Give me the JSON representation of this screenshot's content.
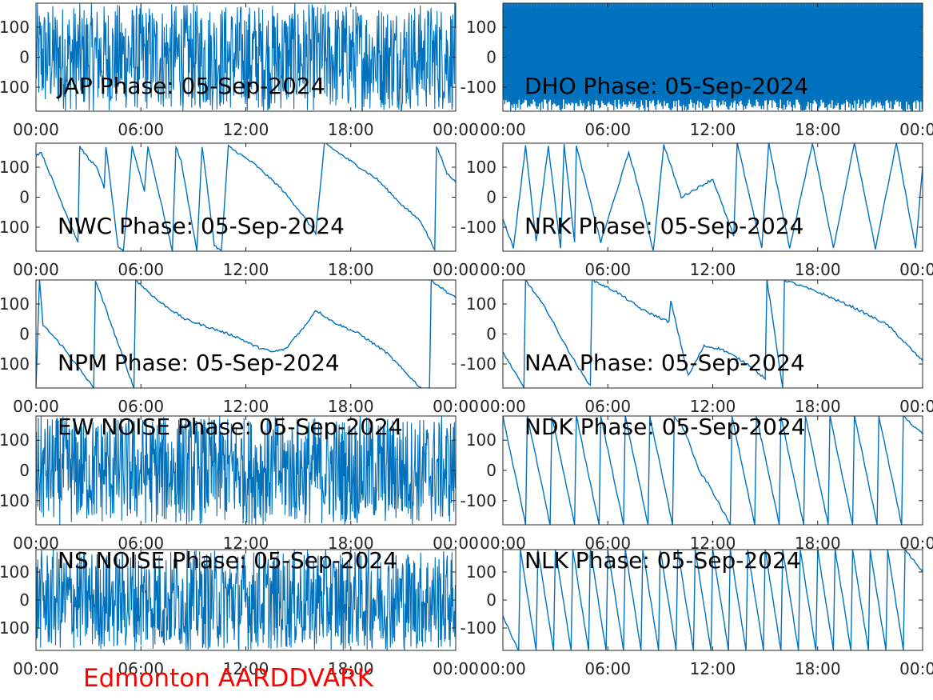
{
  "figure": {
    "station_label": "Edmonton AARDDVARK",
    "station_label_color": "#ff0000",
    "line_color": "#0072bd",
    "axis_color": "#262626",
    "background": "#ffffff"
  },
  "chart_data": [
    {
      "type": "line",
      "title": "JAP Phase: 05-Sep-2024",
      "xticks": [
        "00:00",
        "06:00",
        "12:00",
        "18:00",
        "00:00"
      ],
      "yticks": [
        "100",
        "0",
        "-100"
      ],
      "xlim": [
        0,
        24
      ],
      "ylim": [
        -180,
        180
      ],
      "pattern": "noise-dense",
      "x": [
        0,
        2,
        4,
        6,
        8,
        10,
        12,
        14,
        16,
        18,
        20,
        22,
        24
      ],
      "y": [
        30,
        -120,
        150,
        -60,
        90,
        -170,
        40,
        120,
        -100,
        170,
        -30,
        80,
        0
      ]
    },
    {
      "type": "line",
      "title": "DHO Phase: 05-Sep-2024",
      "xticks": [
        "00:00",
        "06:00",
        "12:00",
        "18:00",
        "00:00"
      ],
      "yticks": [
        "100",
        "0",
        "-100"
      ],
      "xlim": [
        0,
        24
      ],
      "ylim": [
        -180,
        180
      ],
      "pattern": "rapid-wrap",
      "x": [
        0,
        2,
        4,
        6,
        8,
        10,
        12,
        14,
        16,
        18,
        20,
        22,
        24
      ],
      "y": [
        20,
        -150,
        170,
        -80,
        100,
        -40,
        60,
        -120,
        150,
        -20,
        90,
        -170,
        0
      ]
    },
    {
      "type": "line",
      "title": "NWC Phase: 05-Sep-2024",
      "xticks": [
        "00:00",
        "06:00",
        "12:00",
        "18:00",
        "00:00"
      ],
      "yticks": [
        "100",
        "0",
        "-100"
      ],
      "xlim": [
        0,
        24
      ],
      "ylim": [
        -180,
        180
      ],
      "pattern": "wrapped",
      "x": [
        0,
        0.3,
        1.2,
        2.4,
        2.5,
        3.1,
        3.4,
        3.9,
        4.0,
        4.7,
        5.0,
        5.5,
        6.2,
        6.4,
        7.8,
        8.0,
        8.3,
        9.2,
        9.5,
        10.2,
        10.6,
        11.0,
        12.5,
        14.0,
        15.0,
        16.0,
        16.5,
        18.0,
        19.5,
        21.0,
        22.0,
        22.8,
        22.9,
        23.5,
        24.0
      ],
      "y": [
        140,
        150,
        20,
        -150,
        170,
        120,
        110,
        30,
        170,
        -170,
        -180,
        170,
        20,
        170,
        -180,
        170,
        120,
        -180,
        170,
        -160,
        -180,
        170,
        110,
        30,
        -40,
        -120,
        180,
        120,
        60,
        -30,
        -80,
        -175,
        170,
        80,
        50
      ]
    },
    {
      "type": "line",
      "title": "NRK Phase: 05-Sep-2024",
      "xticks": [
        "00:00",
        "06:00",
        "12:00",
        "18:00",
        "00:00"
      ],
      "yticks": [
        "100",
        "0",
        "-100"
      ],
      "xlim": [
        0,
        24
      ],
      "ylim": [
        -180,
        180
      ],
      "pattern": "wrapped",
      "x": [
        0,
        0.6,
        1.3,
        1.9,
        2.6,
        3.3,
        3.5,
        4.1,
        4.2,
        5.6,
        7.2,
        7.9,
        8.6,
        9.2,
        10.2,
        12.0,
        13.2,
        13.4,
        14.8,
        15.2,
        16.4,
        17.7,
        18.9,
        20.1,
        21.3,
        22.5,
        23.6,
        24.0
      ],
      "y": [
        -70,
        -170,
        170,
        -150,
        170,
        -170,
        180,
        -150,
        170,
        -150,
        150,
        0,
        -180,
        175,
        0,
        60,
        -130,
        180,
        -170,
        180,
        -170,
        180,
        -170,
        180,
        -170,
        180,
        -170,
        100
      ]
    },
    {
      "type": "line",
      "title": "NPM Phase: 05-Sep-2024",
      "xticks": [
        "00:00",
        "06:00",
        "12:00",
        "18:00",
        "00:00"
      ],
      "yticks": [
        "100",
        "0",
        "-100"
      ],
      "xlim": [
        0,
        24
      ],
      "ylim": [
        -180,
        180
      ],
      "pattern": "wrapped",
      "x": [
        0,
        0.2,
        0.4,
        1.5,
        3.3,
        3.4,
        5.6,
        5.7,
        7.0,
        8.5,
        10.0,
        11.5,
        12.5,
        13.5,
        14.3,
        14.8,
        15.3,
        16.0,
        17.0,
        18.5,
        20.0,
        22.0,
        22.5,
        22.6,
        23.5,
        24.0
      ],
      "y": [
        -180,
        180,
        30,
        -40,
        -180,
        180,
        -180,
        180,
        110,
        50,
        20,
        -10,
        -40,
        -60,
        -50,
        -10,
        20,
        80,
        40,
        0,
        -60,
        -180,
        -180,
        180,
        140,
        120
      ]
    },
    {
      "type": "line",
      "title": "NAA Phase: 05-Sep-2024",
      "xticks": [
        "00:00",
        "06:00",
        "12:00",
        "18:00",
        "00:00"
      ],
      "yticks": [
        "100",
        "0",
        "-100"
      ],
      "xlim": [
        0,
        24
      ],
      "ylim": [
        -180,
        180
      ],
      "pattern": "wrapped",
      "x": [
        0,
        1.2,
        1.3,
        2.5,
        3.5,
        4.5,
        5.0,
        5.1,
        6.5,
        8.0,
        9.5,
        9.6,
        10.6,
        11.5,
        12.5,
        14.0,
        15.0,
        15.1,
        16.0,
        16.1,
        18.0,
        20.0,
        22.0,
        24.0
      ],
      "y": [
        -60,
        -180,
        180,
        80,
        -30,
        -130,
        -170,
        180,
        140,
        80,
        40,
        110,
        -140,
        -40,
        -50,
        -100,
        -150,
        180,
        -180,
        180,
        140,
        90,
        30,
        -90
      ]
    },
    {
      "type": "line",
      "title": "EW NOISE Phase: 05-Sep-2024",
      "xticks": [
        "00:00",
        "06:00",
        "12:00",
        "18:00",
        "00:00"
      ],
      "yticks": [
        "100",
        "0",
        "-100"
      ],
      "xlim": [
        0,
        24
      ],
      "ylim": [
        -180,
        180
      ],
      "pattern": "noise-dense",
      "x": [
        0,
        2,
        4,
        6,
        8,
        10,
        12,
        14,
        16,
        18,
        20,
        22,
        24
      ],
      "y": [
        -40,
        90,
        -150,
        60,
        -20,
        130,
        -90,
        30,
        160,
        -120,
        50,
        -70,
        0
      ]
    },
    {
      "type": "line",
      "title": "NDK Phase: 05-Sep-2024",
      "xticks": [
        "00:00",
        "06:00",
        "12:00",
        "18:00",
        "00:00"
      ],
      "yticks": [
        "100",
        "0",
        "-100"
      ],
      "xlim": [
        0,
        24
      ],
      "ylim": [
        -180,
        180
      ],
      "pattern": "wrapped",
      "x": [
        0,
        1.3,
        1.4,
        2.7,
        2.8,
        4.1,
        4.2,
        5.5,
        5.6,
        6.9,
        7.0,
        8.3,
        8.4,
        9.7,
        9.8,
        10.4,
        10.6,
        11.2,
        11.8,
        13.0,
        13.1,
        14.4,
        14.5,
        15.8,
        15.9,
        17.2,
        17.3,
        18.6,
        18.7,
        20.0,
        20.1,
        21.4,
        21.5,
        22.8,
        22.9,
        24.0
      ],
      "y": [
        180,
        -180,
        180,
        -180,
        180,
        -180,
        180,
        -180,
        180,
        -180,
        180,
        -180,
        180,
        -180,
        180,
        130,
        100,
        0,
        -50,
        -180,
        180,
        -180,
        180,
        -180,
        180,
        -180,
        180,
        -180,
        180,
        -180,
        180,
        -180,
        180,
        -180,
        180,
        120
      ]
    },
    {
      "type": "line",
      "title": "NS NOISE Phase: 05-Sep-2024",
      "xticks": [
        "00:00",
        "06:00",
        "12:00",
        "18:00",
        "00:00"
      ],
      "yticks": [
        "100",
        "0",
        "-100"
      ],
      "xlim": [
        0,
        24
      ],
      "ylim": [
        -180,
        180
      ],
      "pattern": "noise-dense",
      "x": [
        0,
        2,
        4,
        6,
        8,
        10,
        12,
        14,
        16,
        18,
        20,
        22,
        24
      ],
      "y": [
        60,
        -100,
        20,
        -160,
        110,
        -30,
        70,
        -140,
        90,
        10,
        -80,
        140,
        0
      ]
    },
    {
      "type": "line",
      "title": "NLK Phase: 05-Sep-2024",
      "xticks": [
        "00:00",
        "06:00",
        "12:00",
        "18:00",
        "00:00"
      ],
      "yticks": [
        "100",
        "0",
        "-100"
      ],
      "xlim": [
        0,
        24
      ],
      "ylim": [
        -180,
        180
      ],
      "pattern": "wrapped",
      "x": [
        0,
        0.9,
        1.0,
        1.9,
        2.0,
        2.9,
        3.0,
        3.9,
        4.0,
        4.9,
        5.0,
        5.9,
        6.0,
        6.9,
        7.0,
        7.9,
        8.0,
        8.9,
        9.0,
        9.9,
        10.0,
        10.9,
        11.0,
        11.9,
        12.0,
        12.9,
        13.0,
        13.9,
        14.0,
        14.9,
        15.0,
        15.9,
        16.0,
        16.9,
        17.0,
        17.9,
        18.0,
        18.9,
        19.0,
        19.9,
        20.0,
        20.9,
        21.0,
        21.9,
        22.0,
        22.9,
        23.0,
        24.0
      ],
      "y": [
        -60,
        -180,
        180,
        -180,
        180,
        -180,
        180,
        -180,
        180,
        -180,
        180,
        -180,
        180,
        -180,
        180,
        -180,
        180,
        -180,
        180,
        -180,
        180,
        -180,
        180,
        -180,
        180,
        -180,
        180,
        -180,
        180,
        -180,
        180,
        -180,
        180,
        -180,
        180,
        -180,
        180,
        -180,
        180,
        -180,
        180,
        -180,
        180,
        -180,
        180,
        -180,
        180,
        100
      ]
    }
  ]
}
